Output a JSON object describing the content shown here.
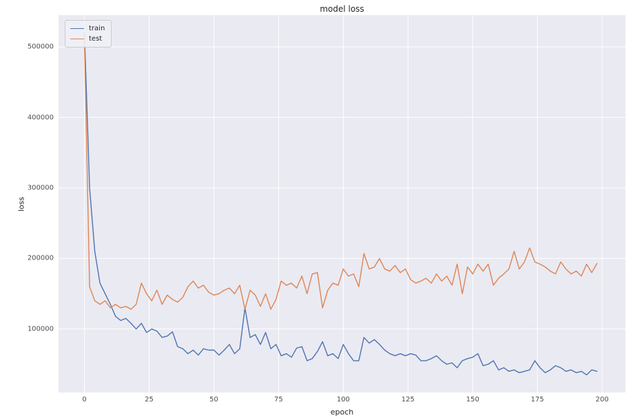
{
  "chart_data": {
    "type": "line",
    "title": "model loss",
    "xlabel": "epoch",
    "ylabel": "loss",
    "xlim": [
      -10,
      209
    ],
    "ylim": [
      10000,
      545000
    ],
    "x_ticks": [
      0,
      25,
      50,
      75,
      100,
      125,
      150,
      175,
      200
    ],
    "y_ticks": [
      100000,
      200000,
      300000,
      400000,
      500000
    ],
    "grid": true,
    "plot_background": "#eaeaf2",
    "grid_color": "#ffffff",
    "legend": {
      "position": "upper left",
      "entries": [
        "train",
        "test"
      ]
    },
    "series": [
      {
        "name": "train",
        "color": "#4c72b0",
        "x": [
          0,
          2,
          4,
          6,
          8,
          10,
          12,
          14,
          16,
          18,
          20,
          22,
          24,
          26,
          28,
          30,
          32,
          34,
          36,
          38,
          40,
          42,
          44,
          46,
          48,
          50,
          52,
          54,
          56,
          58,
          60,
          62,
          64,
          66,
          68,
          70,
          72,
          74,
          76,
          78,
          80,
          82,
          84,
          86,
          88,
          90,
          92,
          94,
          96,
          98,
          100,
          102,
          104,
          106,
          108,
          110,
          112,
          114,
          116,
          118,
          120,
          122,
          124,
          126,
          128,
          130,
          132,
          134,
          136,
          138,
          140,
          142,
          144,
          146,
          148,
          150,
          152,
          154,
          156,
          158,
          160,
          162,
          164,
          166,
          168,
          170,
          172,
          174,
          176,
          178,
          180,
          182,
          184,
          186,
          188,
          190,
          192,
          194,
          196,
          198
        ],
        "values": [
          520000,
          300000,
          210000,
          165000,
          150000,
          135000,
          118000,
          112000,
          115000,
          108000,
          100000,
          108000,
          95000,
          100000,
          97000,
          88000,
          90000,
          96000,
          75000,
          72000,
          65000,
          70000,
          63000,
          72000,
          70000,
          70000,
          63000,
          70000,
          78000,
          65000,
          72000,
          130000,
          88000,
          92000,
          78000,
          95000,
          72000,
          78000,
          62000,
          65000,
          60000,
          73000,
          75000,
          55000,
          58000,
          68000,
          82000,
          62000,
          65000,
          58000,
          78000,
          65000,
          55000,
          55000,
          88000,
          80000,
          85000,
          78000,
          70000,
          65000,
          62000,
          65000,
          62000,
          65000,
          63000,
          55000,
          55000,
          58000,
          62000,
          55000,
          50000,
          52000,
          45000,
          55000,
          58000,
          60000,
          65000,
          48000,
          50000,
          55000,
          42000,
          45000,
          40000,
          42000,
          38000,
          40000,
          42000,
          55000,
          45000,
          38000,
          42000,
          48000,
          45000,
          40000,
          42000,
          38000,
          40000,
          35000,
          42000,
          40000
        ]
      },
      {
        "name": "test",
        "color": "#dd8452",
        "x": [
          0,
          2,
          4,
          6,
          8,
          10,
          12,
          14,
          16,
          18,
          20,
          22,
          24,
          26,
          28,
          30,
          32,
          34,
          36,
          38,
          40,
          42,
          44,
          46,
          48,
          50,
          52,
          54,
          56,
          58,
          60,
          62,
          64,
          66,
          68,
          70,
          72,
          74,
          76,
          78,
          80,
          82,
          84,
          86,
          88,
          90,
          92,
          94,
          96,
          98,
          100,
          102,
          104,
          106,
          108,
          110,
          112,
          114,
          116,
          118,
          120,
          122,
          124,
          126,
          128,
          130,
          132,
          134,
          136,
          138,
          140,
          142,
          144,
          146,
          148,
          150,
          152,
          154,
          156,
          158,
          160,
          162,
          164,
          166,
          168,
          170,
          172,
          174,
          176,
          178,
          180,
          182,
          184,
          186,
          188,
          190,
          192,
          194,
          196,
          198
        ],
        "values": [
          510000,
          160000,
          140000,
          135000,
          140000,
          130000,
          135000,
          130000,
          132000,
          128000,
          135000,
          165000,
          150000,
          140000,
          155000,
          135000,
          148000,
          142000,
          138000,
          145000,
          160000,
          168000,
          158000,
          162000,
          152000,
          148000,
          150000,
          155000,
          158000,
          150000,
          162000,
          128000,
          155000,
          148000,
          132000,
          150000,
          128000,
          142000,
          168000,
          162000,
          165000,
          158000,
          175000,
          150000,
          178000,
          180000,
          130000,
          155000,
          165000,
          162000,
          185000,
          175000,
          178000,
          160000,
          207000,
          185000,
          188000,
          200000,
          185000,
          182000,
          190000,
          180000,
          185000,
          170000,
          165000,
          168000,
          172000,
          165000,
          178000,
          168000,
          175000,
          162000,
          192000,
          150000,
          188000,
          178000,
          192000,
          182000,
          192000,
          162000,
          172000,
          178000,
          185000,
          210000,
          185000,
          195000,
          215000,
          195000,
          192000,
          188000,
          182000,
          178000,
          195000,
          185000,
          178000,
          182000,
          175000,
          192000,
          180000,
          193000
        ]
      }
    ]
  }
}
